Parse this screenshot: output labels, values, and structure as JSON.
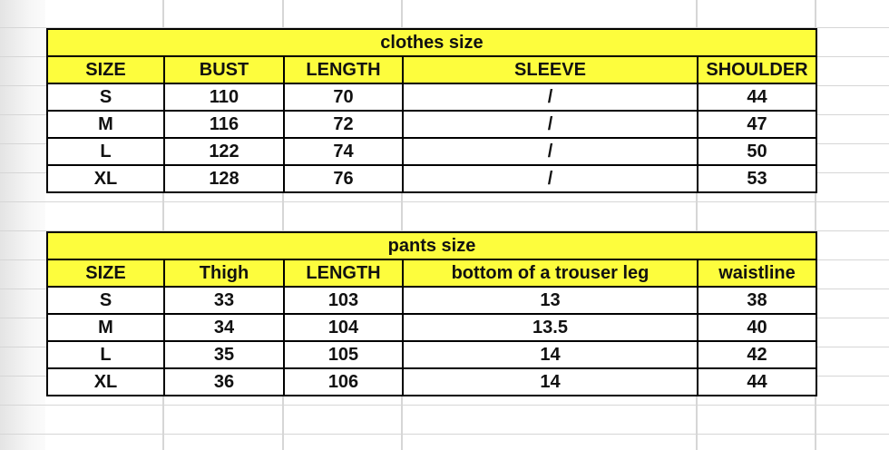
{
  "colors": {
    "header_fill": "#fdfd3d",
    "border": "#000000",
    "gridline": "#d6d6d6"
  },
  "clothes": {
    "title": "clothes size",
    "headers": [
      "SIZE",
      "BUST",
      "LENGTH",
      "SLEEVE",
      "SHOULDER"
    ],
    "rows": [
      [
        "S",
        "110",
        "70",
        "/",
        "44"
      ],
      [
        "M",
        "116",
        "72",
        "/",
        "47"
      ],
      [
        "L",
        "122",
        "74",
        "/",
        "50"
      ],
      [
        "XL",
        "128",
        "76",
        "/",
        "53"
      ]
    ]
  },
  "pants": {
    "title": "pants size",
    "headers": [
      "SIZE",
      "Thigh",
      "LENGTH",
      "bottom of a trouser leg",
      "waistline"
    ],
    "rows": [
      [
        "S",
        "33",
        "103",
        "13",
        "38"
      ],
      [
        "M",
        "34",
        "104",
        "13.5",
        "40"
      ],
      [
        "L",
        "35",
        "105",
        "14",
        "42"
      ],
      [
        "XL",
        "36",
        "106",
        "14",
        "44"
      ]
    ]
  }
}
